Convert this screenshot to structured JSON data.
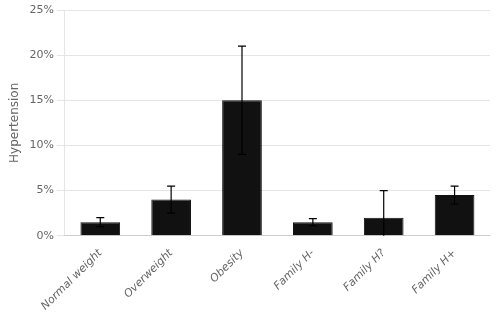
{
  "chart_data": {
    "type": "bar",
    "categories": [
      "Normal weight",
      "Overweight",
      "Obesity",
      "Family H-",
      "Family H?",
      "Family H+"
    ],
    "values": [
      1.5,
      4.0,
      15.0,
      1.5,
      2.0,
      4.5
    ],
    "errors": [
      0.5,
      1.5,
      6.0,
      0.4,
      3.0,
      1.0
    ],
    "color": "#111111",
    "ylabel": "Hypertension",
    "ylim": [
      0,
      25
    ],
    "yticks": [
      {
        "value": 0,
        "label": "0%"
      },
      {
        "value": 5,
        "label": "5%"
      },
      {
        "value": 10,
        "label": "10%"
      },
      {
        "value": 15,
        "label": "15%"
      },
      {
        "value": 20,
        "label": "20%"
      },
      {
        "value": 25,
        "label": "25%"
      }
    ],
    "grid": true
  }
}
